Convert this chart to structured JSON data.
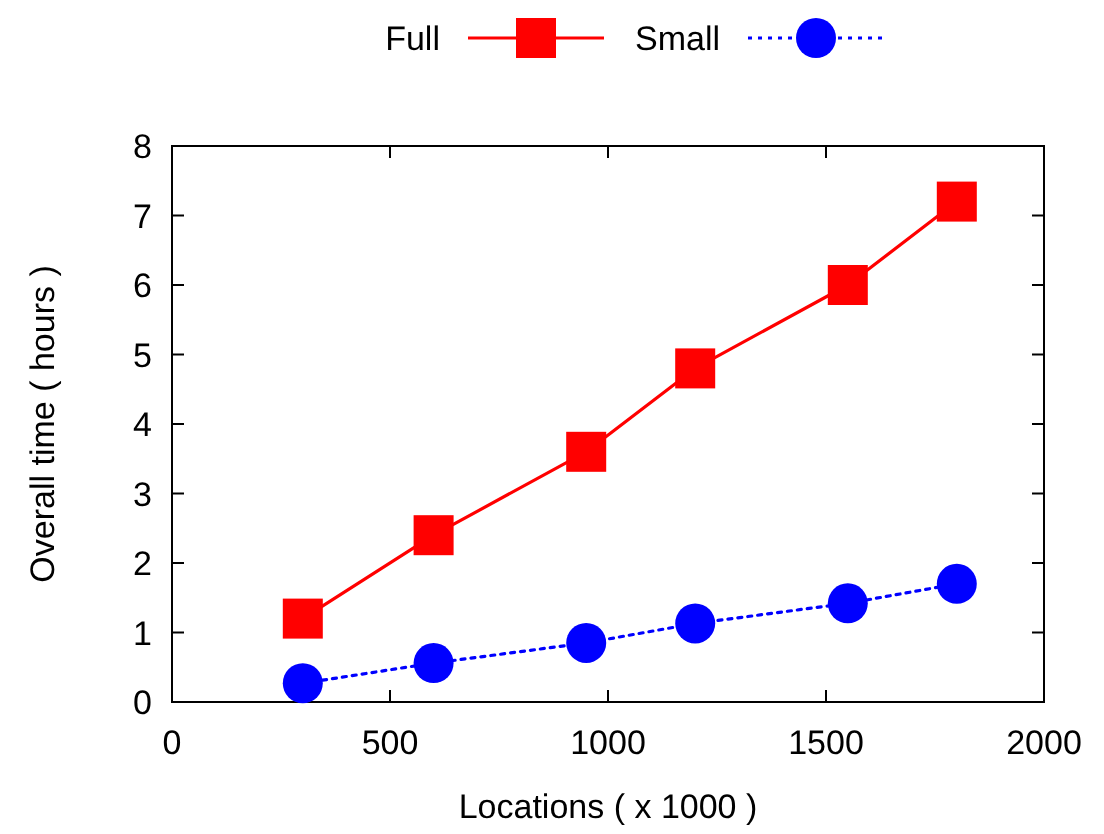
{
  "chart_data": {
    "type": "line",
    "xlabel": "Locations ( x 1000 )",
    "ylabel": "Overall time ( hours )",
    "x": [
      300,
      600,
      950,
      1200,
      1550,
      1800
    ],
    "series": [
      {
        "name": "Full",
        "color": "#ff0000",
        "values": [
          1.2,
          2.4,
          3.6,
          4.8,
          6.0,
          7.2
        ],
        "marker": "square",
        "line_style": "solid"
      },
      {
        "name": "Small",
        "color": "#0000ff",
        "values": [
          0.27,
          0.56,
          0.85,
          1.13,
          1.42,
          1.7
        ],
        "marker": "circle",
        "line_style": "dotted"
      }
    ],
    "xlim": [
      0,
      2000
    ],
    "xticks": [
      0,
      500,
      1000,
      1500,
      2000
    ],
    "ylim": [
      0,
      8
    ],
    "yticks": [
      0,
      1,
      2,
      3,
      4,
      5,
      6,
      7,
      8
    ],
    "grid": false,
    "legend": "top"
  }
}
